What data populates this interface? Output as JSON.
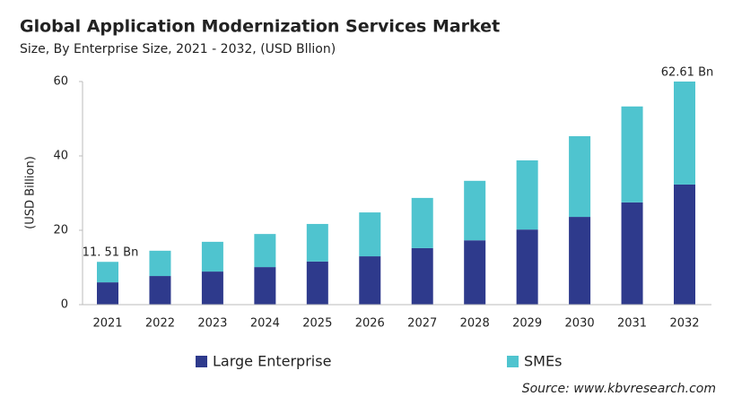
{
  "chart_data": {
    "type": "stacked_bar",
    "title": "Global Application Modernization Services Market",
    "subtitle": "Size, By Enterprise Size, 2021 - 2032, (USD Bllion)",
    "y_label": "(USD Billion)",
    "source": "Source: www.kbvresearch.com",
    "categories": [
      "2021",
      "2022",
      "2023",
      "2024",
      "2025",
      "2026",
      "2027",
      "2028",
      "2029",
      "2030",
      "2031",
      "2032"
    ],
    "series": [
      {
        "name": "Large Enterprise",
        "color": "#2e3a8c",
        "values": [
          6.0,
          7.7,
          8.9,
          10.1,
          11.6,
          13.0,
          15.2,
          17.3,
          20.2,
          23.6,
          27.5,
          32.3
        ]
      },
      {
        "name": "SMEs",
        "color": "#4fc4cf",
        "values": [
          5.51,
          6.8,
          8.0,
          8.9,
          10.1,
          11.8,
          13.5,
          16.0,
          18.6,
          21.7,
          25.8,
          30.31
        ]
      }
    ],
    "annotations": [
      {
        "text": "11. 51 Bn"
      },
      {
        "text": "62.61 Bn"
      }
    ],
    "ylim": [
      0,
      60
    ],
    "yticks": [
      0,
      20,
      40,
      60
    ]
  }
}
